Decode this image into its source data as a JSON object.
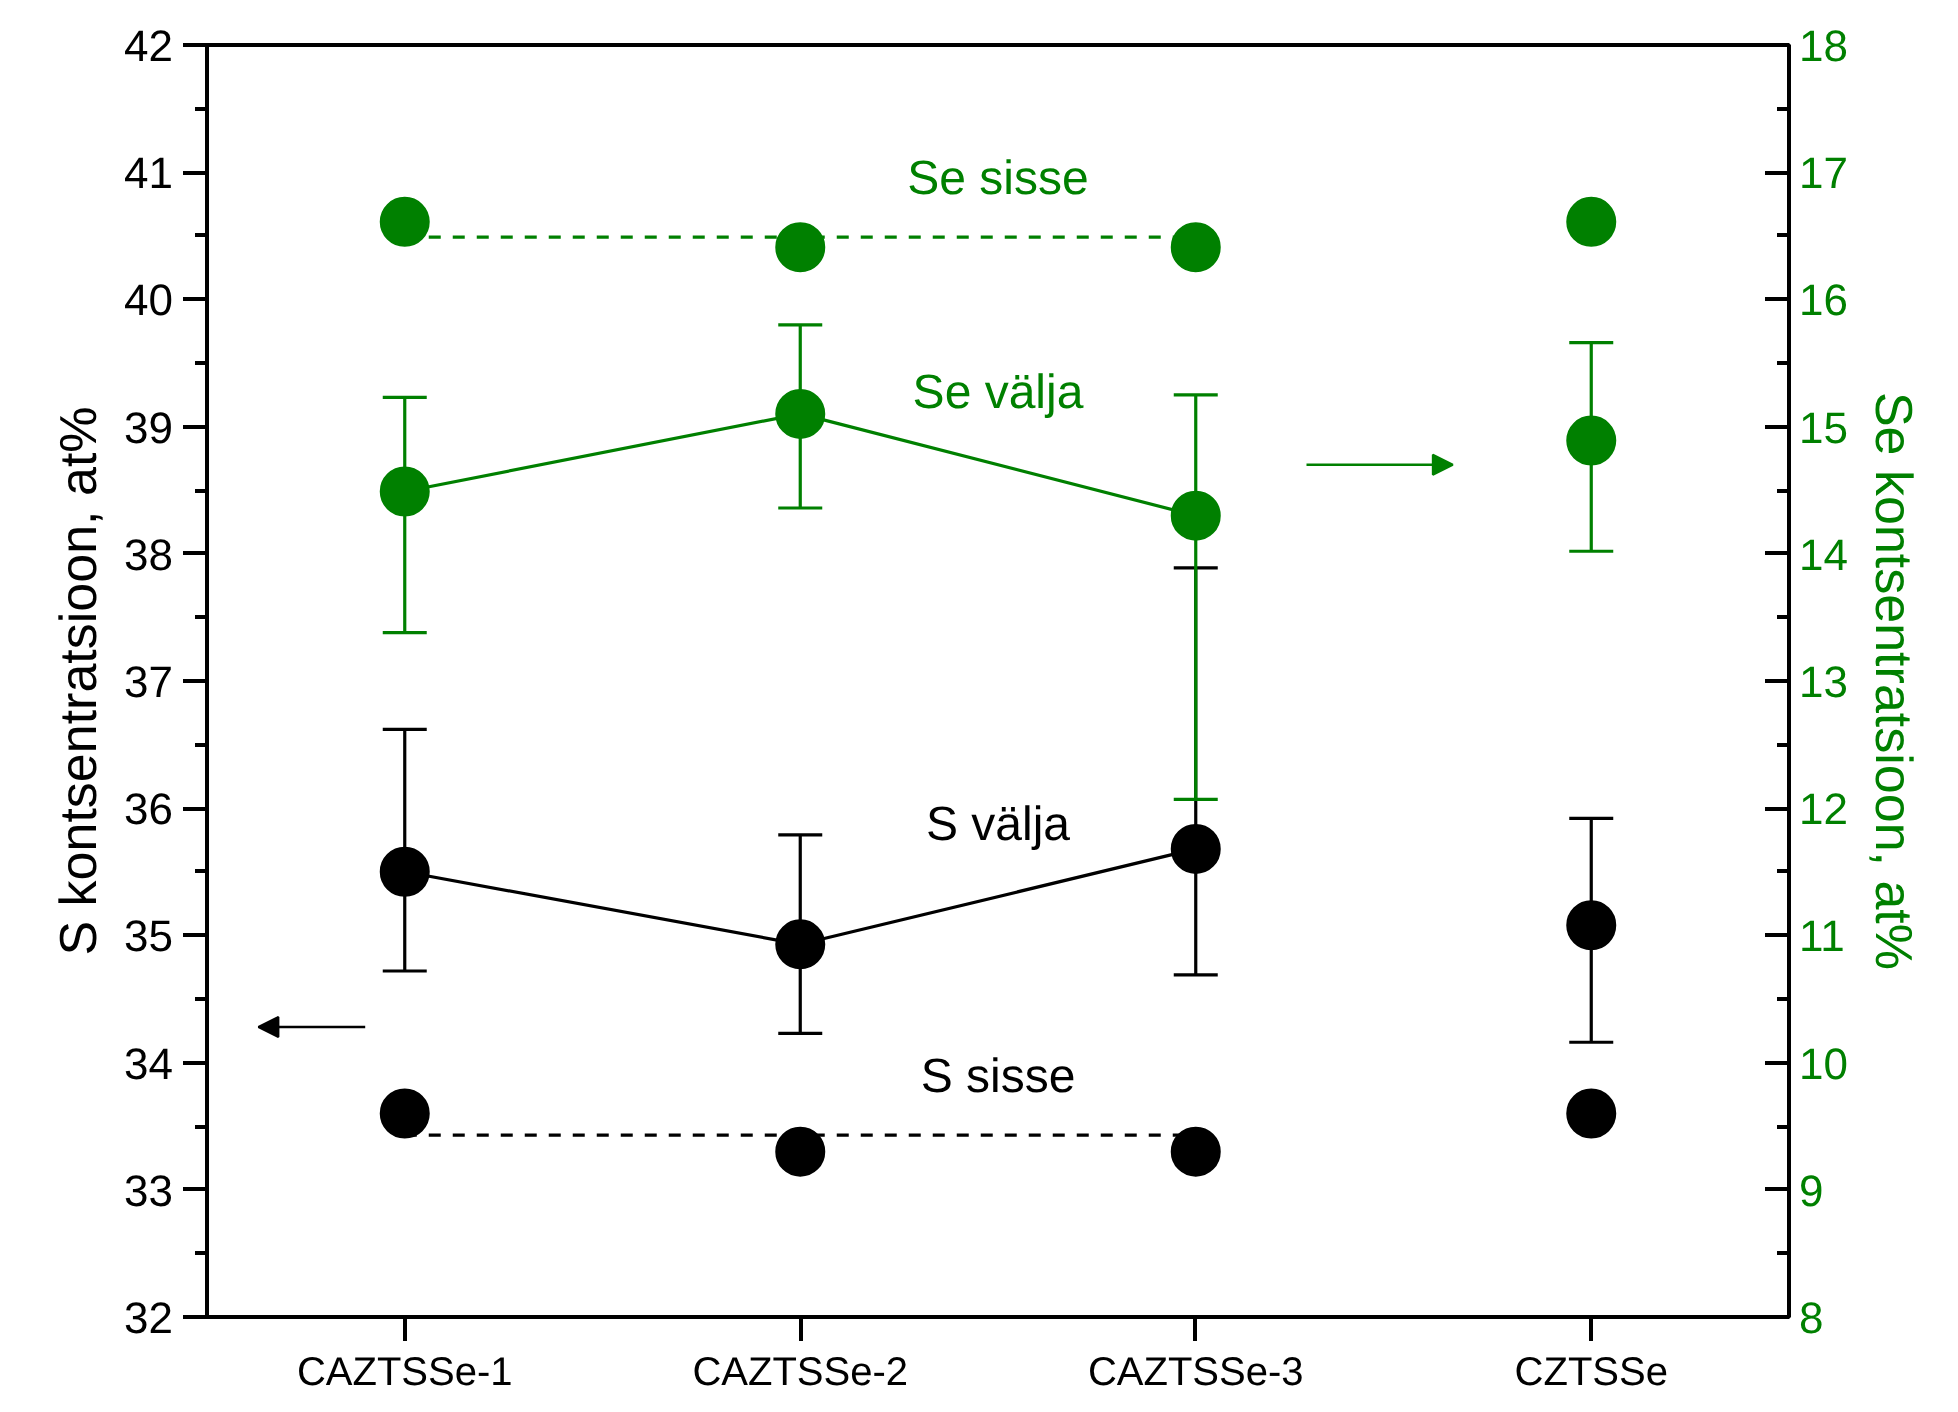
{
  "chart_data": {
    "type": "scatter",
    "ylabel": "S kontsentratsioon, at%",
    "y2label": "Se kontsentratsioon, at%",
    "categories": [
      "CAZTSSe-1",
      "CAZTSSe-2",
      "CAZTSSe-3",
      "CZTSSe"
    ],
    "ylim": [
      32,
      42
    ],
    "yticks": [
      32,
      {
        "value": 32.5,
        "label": null
      },
      33,
      {
        "value": 33.5,
        "label": null
      },
      34,
      {
        "value": 34.5,
        "label": null
      },
      35,
      {
        "value": 35.5,
        "label": null
      },
      36,
      {
        "value": 36.5,
        "label": null
      },
      37,
      {
        "value": 37.5,
        "label": null
      },
      38,
      {
        "value": 38.5,
        "label": null
      },
      39,
      {
        "value": 39.5,
        "label": null
      },
      40,
      {
        "value": 40.5,
        "label": null
      },
      41,
      {
        "value": 41.5,
        "label": null
      },
      42
    ],
    "y2lim": [
      8,
      18
    ],
    "y2ticks": [
      8,
      {
        "value": 8.5,
        "label": null
      },
      9,
      {
        "value": 9.5,
        "label": null
      },
      10,
      {
        "value": 10.5,
        "label": null
      },
      11,
      {
        "value": 11.5,
        "label": null
      },
      12,
      {
        "value": 12.5,
        "label": null
      },
      13,
      {
        "value": 13.5,
        "label": null
      },
      14,
      {
        "value": 14.5,
        "label": null
      },
      15,
      {
        "value": 15.5,
        "label": null
      },
      16,
      {
        "value": 16.5,
        "label": null
      },
      17,
      {
        "value": 17.5,
        "label": null
      },
      18
    ],
    "grid": false,
    "marker": "circle",
    "series": [
      {
        "name": "S välja",
        "type": "line",
        "color": "#000000",
        "values": [
          35.5,
          34.93,
          35.68,
          null
        ],
        "errors": [
          [
            34.72,
            36.62
          ],
          [
            34.23,
            35.79
          ],
          [
            34.69,
            37.89
          ],
          null
        ]
      },
      {
        "color": "#000000",
        "values": [
          null,
          null,
          null,
          35.08
        ],
        "errors": [
          null,
          null,
          null,
          [
            34.16,
            35.92
          ]
        ]
      },
      {
        "name": "S sisse",
        "color": "#000000",
        "values": [
          33.6,
          33.3,
          33.3,
          33.6
        ]
      },
      {
        "type": "line",
        "marker": "none",
        "line_style": "dashed",
        "color": "#000000",
        "values": [
          33.43,
          33.43,
          33.43,
          null
        ]
      },
      {
        "name": "Se välja",
        "type": "line",
        "axis": "y2",
        "color": "#008000",
        "values": [
          14.49,
          15.1,
          14.3,
          null
        ],
        "errors": [
          [
            13.38,
            15.23
          ],
          [
            14.36,
            15.8
          ],
          [
            12.07,
            15.25
          ],
          null
        ]
      },
      {
        "axis": "y2",
        "color": "#008000",
        "values": [
          null,
          null,
          null,
          14.89
        ],
        "errors": [
          null,
          null,
          null,
          [
            14.02,
            15.66
          ]
        ]
      },
      {
        "name": "Se sisse",
        "axis": "y2",
        "color": "#008000",
        "values": [
          16.61,
          16.41,
          16.41,
          16.61
        ]
      },
      {
        "type": "line",
        "axis": "y2",
        "marker": "none",
        "line_style": "dashed",
        "color": "#008000",
        "values": [
          16.49,
          16.49,
          16.49,
          null
        ]
      }
    ]
  }
}
